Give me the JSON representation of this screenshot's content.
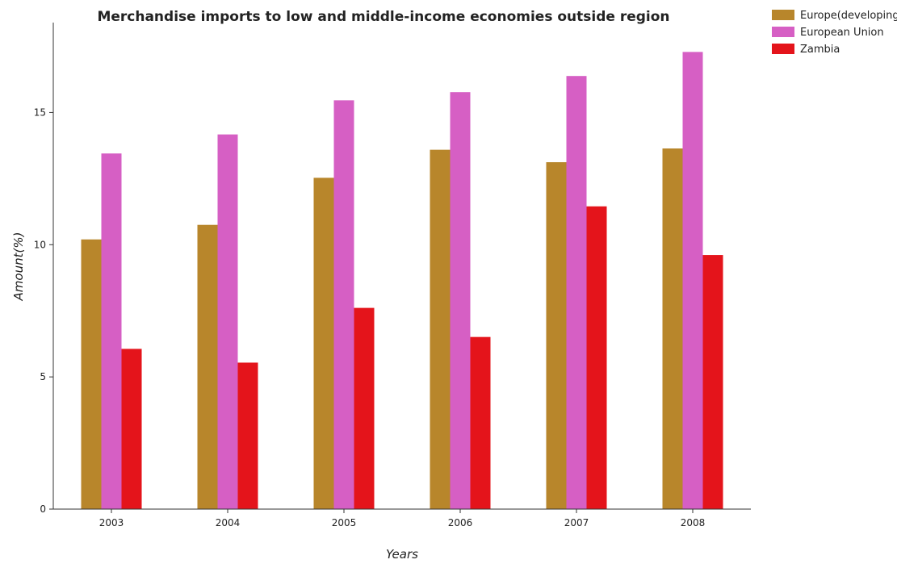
{
  "chart_data": {
    "type": "bar",
    "title": "Merchandise imports to low and middle-income economies outside region",
    "xlabel": "Years",
    "ylabel": "Amount(%)",
    "ylim": [
      0,
      18.4
    ],
    "yticks": [
      0,
      5,
      10,
      15
    ],
    "grid": false,
    "legend_position": "top-right",
    "categories": [
      "2003",
      "2004",
      "2005",
      "2006",
      "2007",
      "2008"
    ],
    "series": [
      {
        "name": "Europe(developing only)",
        "color": "#b8862b",
        "values": [
          10.2,
          10.75,
          12.53,
          13.59,
          13.12,
          13.64
        ]
      },
      {
        "name": "European Union",
        "color": "#d65fc4",
        "values": [
          13.45,
          14.17,
          15.46,
          15.77,
          16.38,
          17.29
        ]
      },
      {
        "name": "Zambia",
        "color": "#e4141b",
        "values": [
          6.06,
          5.54,
          7.61,
          6.51,
          11.45,
          9.61
        ]
      }
    ]
  }
}
